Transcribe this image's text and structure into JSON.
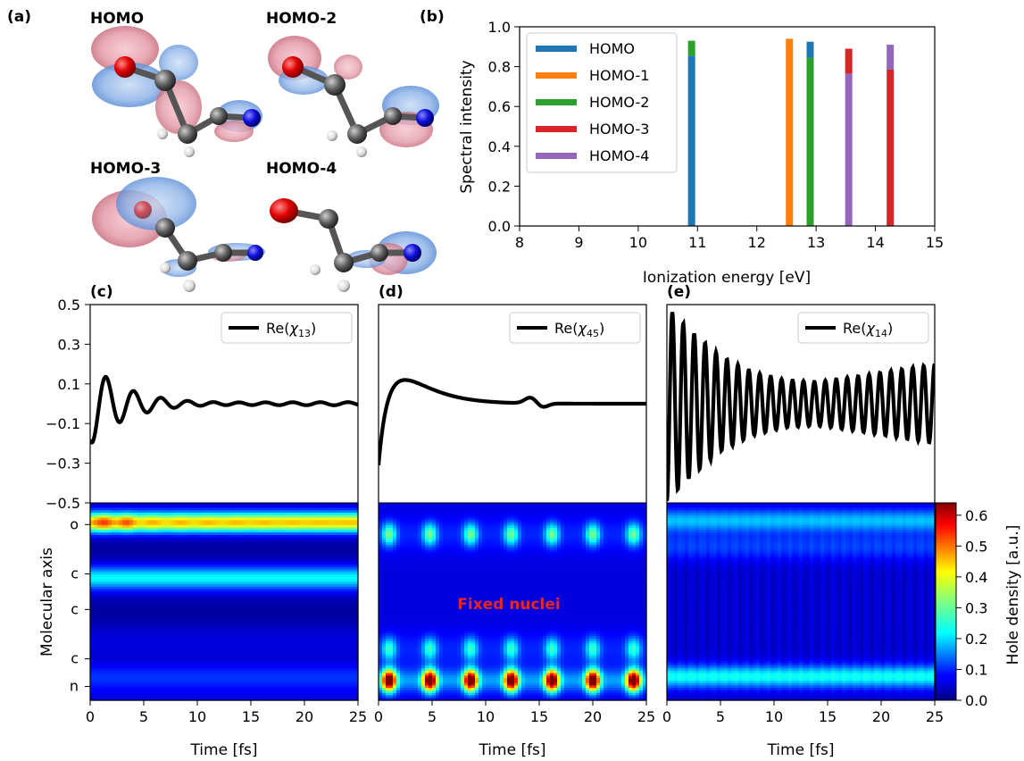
{
  "panel_labels": {
    "a": "(a)",
    "b": "(b)",
    "c": "(c)",
    "d": "(d)",
    "e": "(e)"
  },
  "orbital_labels": [
    "HOMO",
    "HOMO-2",
    "HOMO-3",
    "HOMO-4"
  ],
  "colors": {
    "homo": "#1f77b4",
    "homo1": "#ff7f0e",
    "homo2": "#2ca02c",
    "homo3": "#d62728",
    "homo4": "#9467bd",
    "fixed_nuclei": "#e8261f"
  },
  "chart_data": [
    {
      "type": "bar",
      "panel": "(b)",
      "xlabel": "Ionization energy [eV]",
      "ylabel": "Spectral intensity",
      "xlim": [
        8,
        15
      ],
      "ylim": [
        0,
        1.0
      ],
      "xticks": [
        "8",
        "9",
        "10",
        "11",
        "12",
        "13",
        "14",
        "15"
      ],
      "yticks": [
        "0.0",
        "0.2",
        "0.4",
        "0.6",
        "0.8",
        "1.0"
      ],
      "legend_position": "top-left",
      "grid": false,
      "series": [
        {
          "name": "HOMO",
          "color": "#1f77b4"
        },
        {
          "name": "HOMO-1",
          "color": "#ff7f0e"
        },
        {
          "name": "HOMO-2",
          "color": "#2ca02c"
        },
        {
          "name": "HOMO-3",
          "color": "#d62728"
        },
        {
          "name": "HOMO-4",
          "color": "#9467bd"
        }
      ],
      "bars": [
        {
          "x": 10.9,
          "segments": [
            {
              "series": "HOMO",
              "value": 0.855
            },
            {
              "series": "HOMO-2",
              "value": 0.075
            }
          ]
        },
        {
          "x": 12.55,
          "segments": [
            {
              "series": "HOMO-1",
              "value": 0.94
            }
          ]
        },
        {
          "x": 12.9,
          "segments": [
            {
              "series": "HOMO-2",
              "value": 0.845
            },
            {
              "series": "HOMO",
              "value": 0.08
            }
          ]
        },
        {
          "x": 13.55,
          "segments": [
            {
              "series": "HOMO-4",
              "value": 0.765
            },
            {
              "series": "HOMO-3",
              "value": 0.125
            }
          ]
        },
        {
          "x": 14.25,
          "segments": [
            {
              "series": "HOMO-3",
              "value": 0.785
            },
            {
              "series": "HOMO-4",
              "value": 0.125
            }
          ]
        }
      ]
    },
    {
      "type": "line",
      "panel": "(c)",
      "legend": "Re(χ13)",
      "legend_parts": {
        "prefix": "Re(",
        "symbol": "χ",
        "sub": "13",
        "suffix": ")"
      },
      "xlim": [
        0,
        25
      ],
      "ylim": [
        -0.5,
        0.5
      ],
      "yticks": [
        "0.5",
        "0.3",
        "0.1",
        "−0.1",
        "−0.3",
        "−0.5"
      ],
      "model": {
        "offset": 0.0,
        "amplitude": 0.21,
        "decay_fs": 3.6,
        "period_fs": 2.6,
        "phase": -2.1,
        "late_amplitude": 0.008
      },
      "series": [
        {
          "name": "Re(χ13)",
          "x": [
            0,
            1,
            2,
            3,
            4,
            5,
            6,
            8,
            10,
            15,
            20,
            25
          ],
          "values": [
            -0.2,
            0.19,
            -0.12,
            0.13,
            -0.05,
            0.07,
            0.03,
            0.02,
            0.02,
            0.01,
            0.01,
            0.0
          ]
        }
      ]
    },
    {
      "type": "line",
      "panel": "(d)",
      "legend": "Re(χ45)",
      "legend_parts": {
        "prefix": "Re(",
        "symbol": "χ",
        "sub": "45",
        "suffix": ")"
      },
      "xlim": [
        0,
        25
      ],
      "ylim": [
        -0.5,
        0.5
      ],
      "series": [
        {
          "name": "Re(χ45)",
          "x": [
            0,
            1,
            2,
            3,
            5,
            10,
            13,
            14,
            15,
            16,
            18,
            25
          ],
          "values": [
            -0.31,
            -0.05,
            0.13,
            0.07,
            0.0,
            0.0,
            0.01,
            0.03,
            -0.02,
            0.01,
            0.0,
            0.0
          ]
        }
      ]
    },
    {
      "type": "line",
      "panel": "(e)",
      "legend": "Re(χ14)",
      "legend_parts": {
        "prefix": "Re(",
        "symbol": "χ",
        "sub": "14",
        "suffix": ")"
      },
      "xlim": [
        0,
        25
      ],
      "ylim": [
        -0.5,
        0.5
      ],
      "model": {
        "offset": 0.0,
        "period_fs": 1.02,
        "envelope": [
          [
            0,
            0.49
          ],
          [
            2,
            0.38
          ],
          [
            5,
            0.24
          ],
          [
            8,
            0.16
          ],
          [
            11,
            0.12
          ],
          [
            14,
            0.11
          ],
          [
            18,
            0.14
          ],
          [
            25,
            0.2
          ]
        ]
      },
      "series": [
        {
          "name": "Re(χ14)",
          "x": [
            0,
            5,
            10,
            15,
            20,
            25
          ],
          "values": [
            -0.45,
            0.24,
            -0.13,
            0.11,
            -0.16,
            -0.2
          ]
        }
      ]
    },
    {
      "type": "heatmap",
      "panel": "(c)",
      "xlabel": "Time [fs]",
      "ylabel": "Molecular axis",
      "xlim": [
        0,
        25
      ],
      "xticks": [
        "0",
        "5",
        "10",
        "15",
        "20",
        "25"
      ],
      "yticks": [
        "o",
        "c",
        "c",
        "c",
        "n"
      ],
      "ytick_positions": [
        0.11,
        0.36,
        0.54,
        0.79,
        0.93
      ],
      "bands": [
        {
          "y": 0.1,
          "value": 0.42,
          "width": 0.035
        },
        {
          "y": 0.38,
          "value": 0.22,
          "width": 0.04
        },
        {
          "y": 0.88,
          "value": 0.13,
          "width": 0.05
        }
      ],
      "hotspots": [
        {
          "t": 1.5,
          "y": 0.1,
          "value": 0.52
        },
        {
          "t": 3.5,
          "y": 0.1,
          "value": 0.48
        }
      ]
    },
    {
      "type": "heatmap",
      "panel": "(d)",
      "xlabel": "Time [fs]",
      "xlim": [
        0,
        25
      ],
      "xticks": [
        "0",
        "5",
        "10",
        "15",
        "20",
        "25"
      ],
      "annotation": "Fixed nuclei",
      "bands": [
        {
          "y": 0.16,
          "value": 0.12,
          "width": 0.05
        },
        {
          "y": 0.74,
          "value": 0.12,
          "width": 0.045
        },
        {
          "y": 0.9,
          "value": 0.35,
          "width": 0.04
        }
      ],
      "spot_period_fs": 3.8,
      "spot_rows": [
        {
          "y": 0.16,
          "value": 0.22
        },
        {
          "y": 0.9,
          "value": 0.55
        },
        {
          "y": 0.74,
          "value": 0.18
        }
      ]
    },
    {
      "type": "heatmap",
      "panel": "(e)",
      "xlabel": "Time [fs]",
      "xlim": [
        0,
        25
      ],
      "xticks": [
        "0",
        "5",
        "10",
        "15",
        "20",
        "25"
      ],
      "colorbar_label": "Hole density [a.u.]",
      "colorbar_ticks": [
        "0.0",
        "0.1",
        "0.2",
        "0.3",
        "0.4",
        "0.5",
        "0.6"
      ],
      "clim": [
        0,
        0.64
      ],
      "bands": [
        {
          "y": 0.09,
          "value": 0.2,
          "width": 0.04
        },
        {
          "y": 0.22,
          "value": 0.12,
          "width": 0.05
        },
        {
          "y": 0.88,
          "value": 0.25,
          "width": 0.04
        }
      ]
    }
  ]
}
